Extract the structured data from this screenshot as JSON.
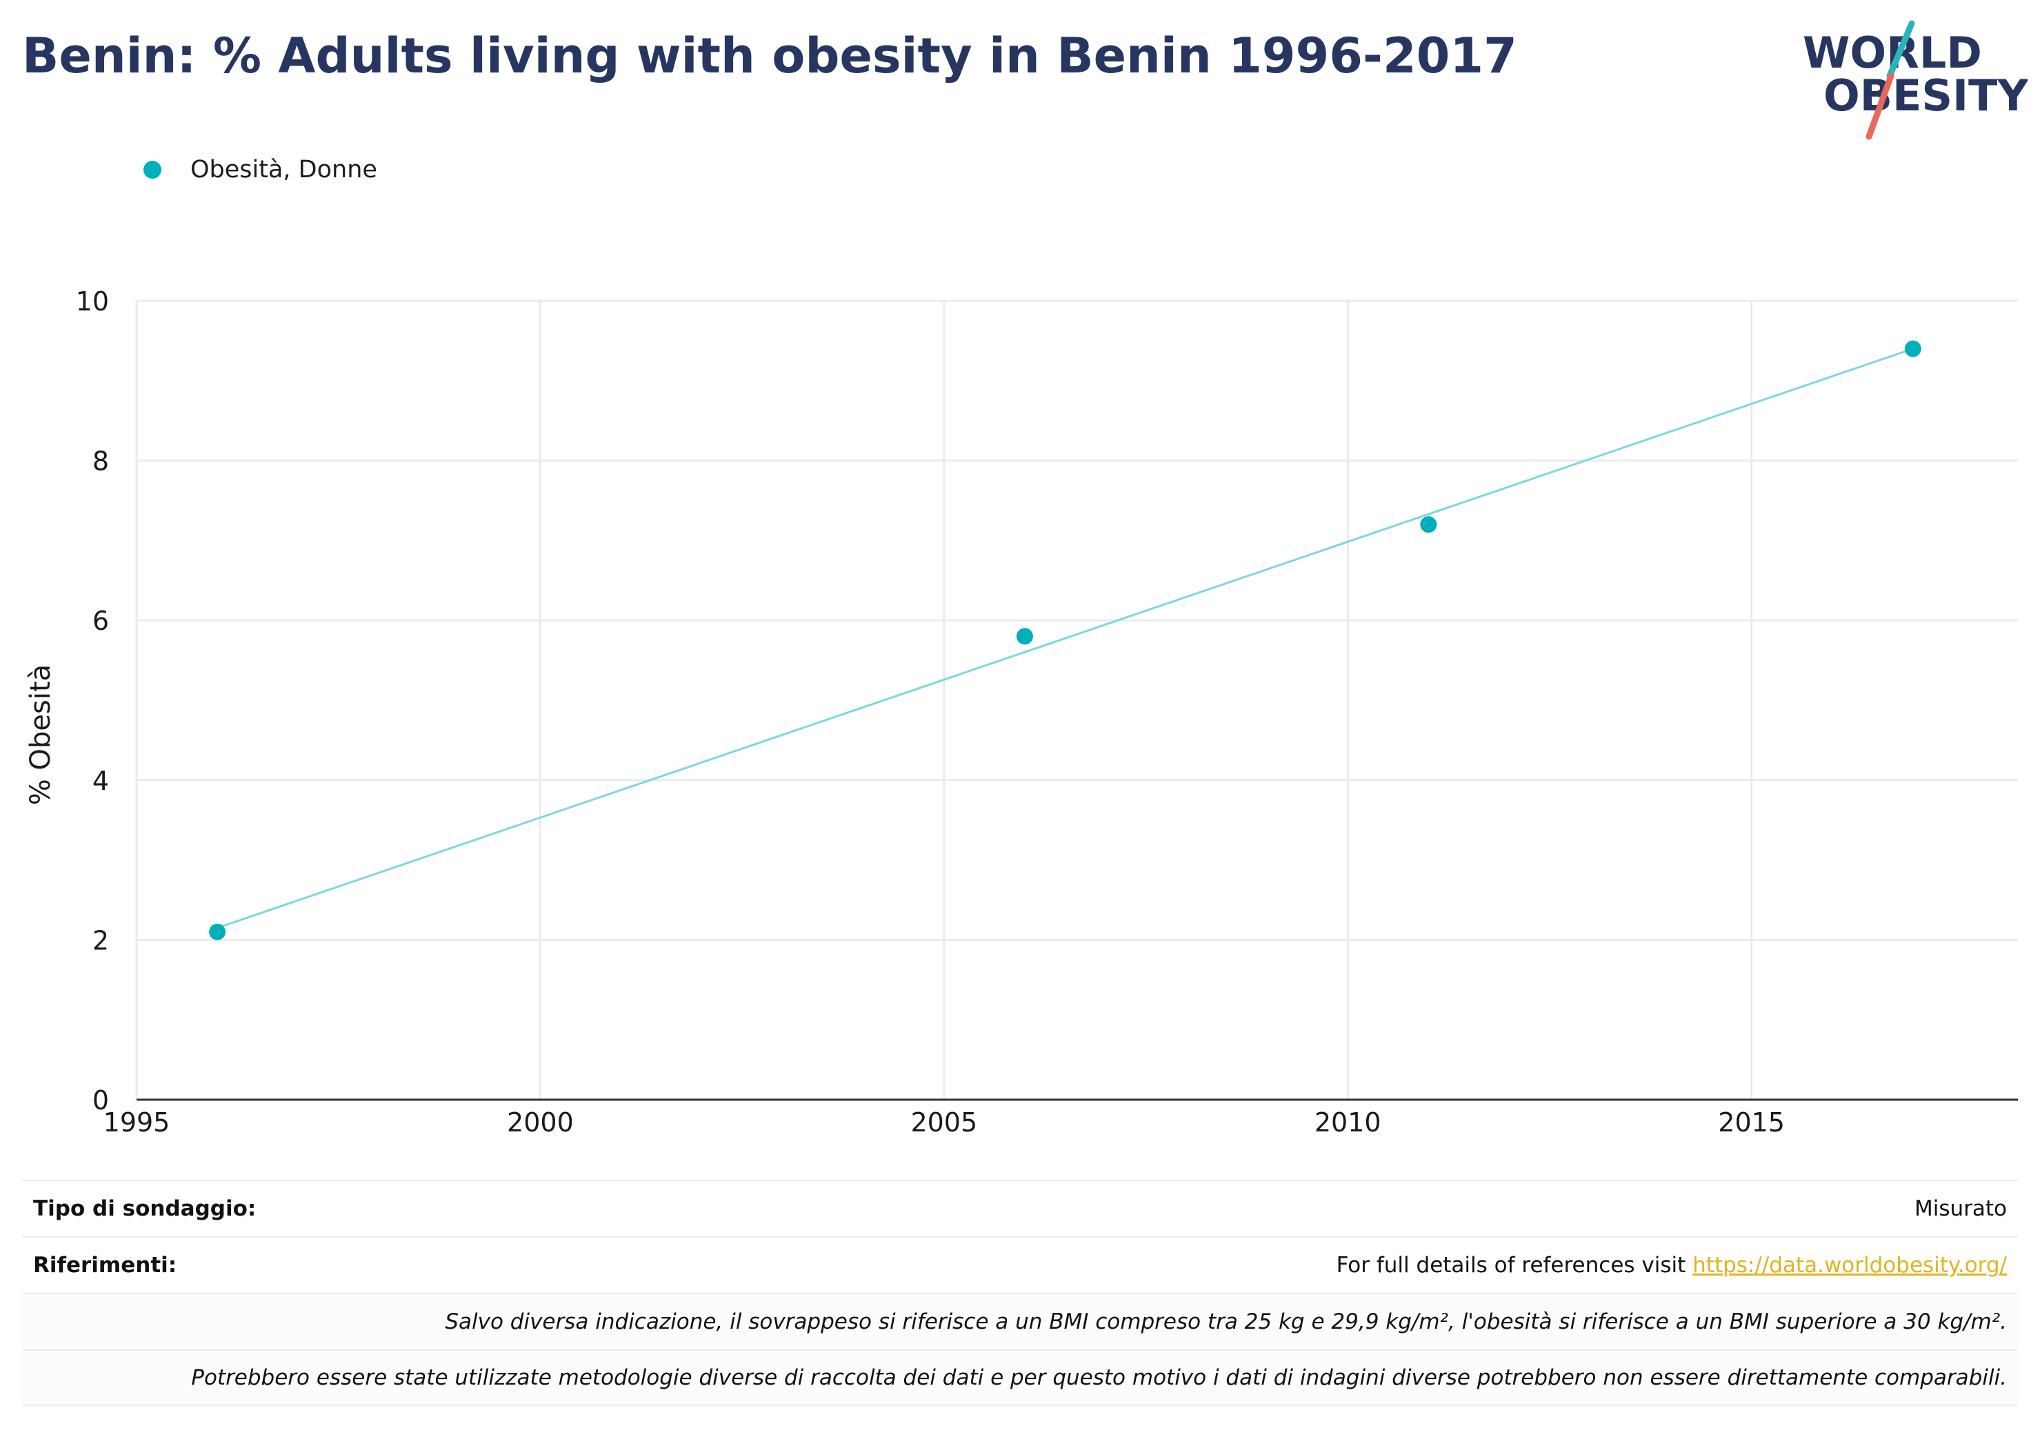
{
  "title": "Benin: % Adults living with obesity in Benin 1996-2017",
  "logo": {
    "line1": "WORLD",
    "line2": "OBESITY",
    "colors": {
      "text": "#273661",
      "slash_teal": "#2BB5B8",
      "slash_red": "#E8695A"
    }
  },
  "legend": {
    "label": "Obesità, Donne",
    "color": "#00AFBB"
  },
  "chart_data": {
    "type": "scatter",
    "title": "Benin: % Adults living with obesity in Benin 1996-2017",
    "xlabel": "",
    "ylabel": "% Obesità",
    "xlim": [
      1995,
      2018.3
    ],
    "ylim": [
      0,
      10
    ],
    "xticks": [
      1995,
      2000,
      2005,
      2010,
      2015
    ],
    "yticks": [
      0,
      2,
      4,
      6,
      8,
      10
    ],
    "grid": true,
    "legend_position": "top-left",
    "series": [
      {
        "name": "Obesità, Donne",
        "color": "#00AFBB",
        "x": [
          1996,
          2006,
          2011,
          2017
        ],
        "y": [
          2.1,
          5.8,
          7.2,
          9.4
        ]
      }
    ],
    "trendline": {
      "color": "#80D7DD",
      "x": [
        1996,
        2017
      ],
      "y": [
        2.15,
        9.4
      ]
    }
  },
  "footer": {
    "survey_label": "Tipo di sondaggio:",
    "survey_value": "Misurato",
    "refs_label": "Riferimenti:",
    "refs_text": "For full details of references visit ",
    "refs_link": "https://data.worldobesity.org/",
    "note1": "Salvo diversa indicazione, il sovrappeso si riferisce a un BMI compreso tra 25 kg e 29,9 kg/m², l'obesità si riferisce a un BMI superiore a 30 kg/m².",
    "note2": "Potrebbero essere state utilizzate metodologie diverse di raccolta dei dati e per questo motivo i dati di indagini diverse potrebbero non essere direttamente comparabili."
  }
}
